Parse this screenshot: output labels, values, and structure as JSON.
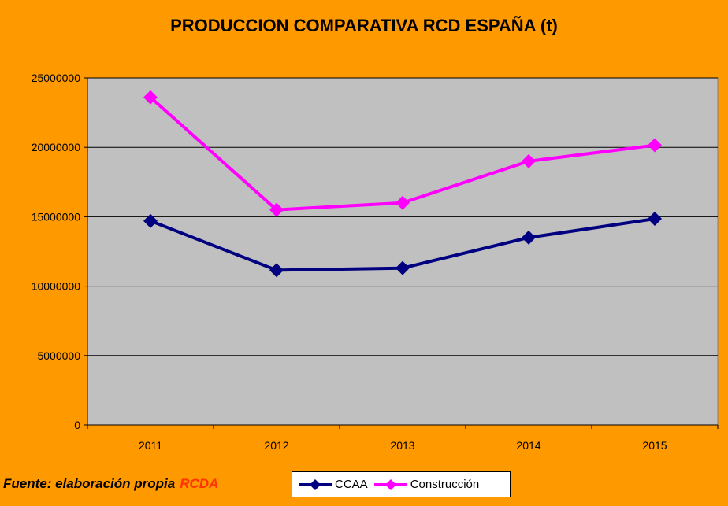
{
  "chart_data": {
    "type": "line",
    "title": "PRODUCCION COMPARATIVA RCD ESPAÑA (t)",
    "xlabel": "",
    "ylabel": "",
    "categories": [
      "2011",
      "2012",
      "2013",
      "2014",
      "2015"
    ],
    "ylim": [
      0,
      25000000
    ],
    "yticks": [
      "0",
      "5000000",
      "10000000",
      "15000000",
      "20000000",
      "25000000"
    ],
    "grid": true,
    "legend_position": "bottom",
    "series": [
      {
        "name": "CCAA",
        "color": "#000080",
        "values": [
          14700000,
          11150000,
          11300000,
          13500000,
          14850000
        ]
      },
      {
        "name": "Construcción",
        "color": "#FF00FF",
        "values": [
          23600000,
          15500000,
          16000000,
          19000000,
          20150000
        ]
      }
    ],
    "plot_background": "#C0C0C0",
    "figure_background": "#FF9900"
  },
  "footer": {
    "source_text": "Fuente: elaboración propia",
    "source_brand": "RCDA"
  }
}
